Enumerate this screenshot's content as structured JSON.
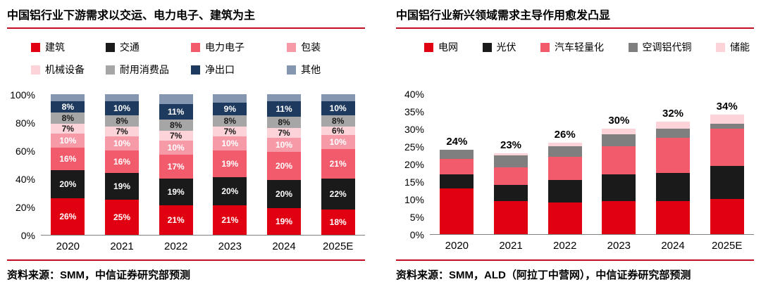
{
  "page": {
    "rule_color": "#c30d23",
    "background": "#ffffff"
  },
  "chart_data": [
    {
      "type": "bar",
      "stacked": true,
      "title": "中国铝行业下游需求以交运、电力电子、建筑为主",
      "source": "资料来源：SMM，中信证券研究部预测",
      "categories": [
        "2020",
        "2021",
        "2022",
        "2023",
        "2024",
        "2025E"
      ],
      "ylim": [
        0,
        100
      ],
      "yticks": [
        "0%",
        "20%",
        "40%",
        "60%",
        "80%",
        "100%"
      ],
      "unit": "%",
      "grid": false,
      "legend_position": "top",
      "legend_rows": 2,
      "segment_labels": true,
      "series": [
        {
          "name": "建筑",
          "color": "#e00012",
          "label_color": "#ffffff",
          "values": [
            26,
            25,
            21,
            21,
            19,
            18
          ]
        },
        {
          "name": "交通",
          "color": "#1a1a1a",
          "label_color": "#ffffff",
          "values": [
            20,
            19,
            19,
            20,
            20,
            22
          ]
        },
        {
          "name": "电力电子",
          "color": "#f15b6c",
          "label_color": "#ffffff",
          "values": [
            16,
            16,
            17,
            19,
            20,
            21
          ]
        },
        {
          "name": "包装",
          "color": "#f79aa8",
          "label_color": "#ffffff",
          "values": [
            10,
            10,
            10,
            10,
            10,
            10
          ]
        },
        {
          "name": "机械设备",
          "color": "#fbd3d8",
          "label_color": "#1a1a1a",
          "values": [
            7,
            7,
            7,
            7,
            7,
            6
          ]
        },
        {
          "name": "耐用消费品",
          "color": "#a6a6a6",
          "label_color": "#1a1a1a",
          "values": [
            8,
            8,
            8,
            8,
            8,
            8
          ]
        },
        {
          "name": "净出口",
          "color": "#1e3a5f",
          "label_color": "#ffffff",
          "values": [
            8,
            10,
            11,
            9,
            11,
            10
          ]
        },
        {
          "name": "其他",
          "color": "#8496b0",
          "label_color": "#ffffff",
          "show_labels": false,
          "values": [
            5,
            5,
            7,
            6,
            5,
            5
          ]
        }
      ]
    },
    {
      "type": "bar",
      "stacked": true,
      "title": "中国铝行业新兴领域需求主导作用愈发凸显",
      "source": "资料来源：SMM，ALD（阿拉丁中营网），中信证券研究部预测",
      "categories": [
        "2020",
        "2021",
        "2022",
        "2023",
        "2024",
        "2025E"
      ],
      "ylim": [
        0,
        40
      ],
      "yticks": [
        "0%",
        "5%",
        "10%",
        "15%",
        "20%",
        "25%",
        "30%",
        "35%",
        "40%"
      ],
      "unit": "%",
      "grid": false,
      "legend_position": "top",
      "legend_rows": 1,
      "segment_labels": false,
      "total_labels": [
        "24%",
        "23%",
        "26%",
        "30%",
        "32%",
        "34%"
      ],
      "series": [
        {
          "name": "电网",
          "color": "#e00012",
          "values": [
            13,
            9.5,
            9,
            9.5,
            9.5,
            10
          ]
        },
        {
          "name": "光伏",
          "color": "#1a1a1a",
          "values": [
            4,
            4.5,
            6.5,
            7.5,
            8,
            9.5
          ]
        },
        {
          "name": "汽车轻量化",
          "color": "#f15b6c",
          "values": [
            4.5,
            5,
            6.5,
            8,
            10,
            10.5
          ]
        },
        {
          "name": "空调铝代铜",
          "color": "#7f7f7f",
          "values": [
            2.5,
            3.5,
            3,
            3.5,
            2.5,
            1.5
          ]
        },
        {
          "name": "储能",
          "color": "#fbd3d8",
          "values": [
            0,
            0.5,
            1,
            1.5,
            2,
            2.5
          ]
        }
      ]
    }
  ]
}
